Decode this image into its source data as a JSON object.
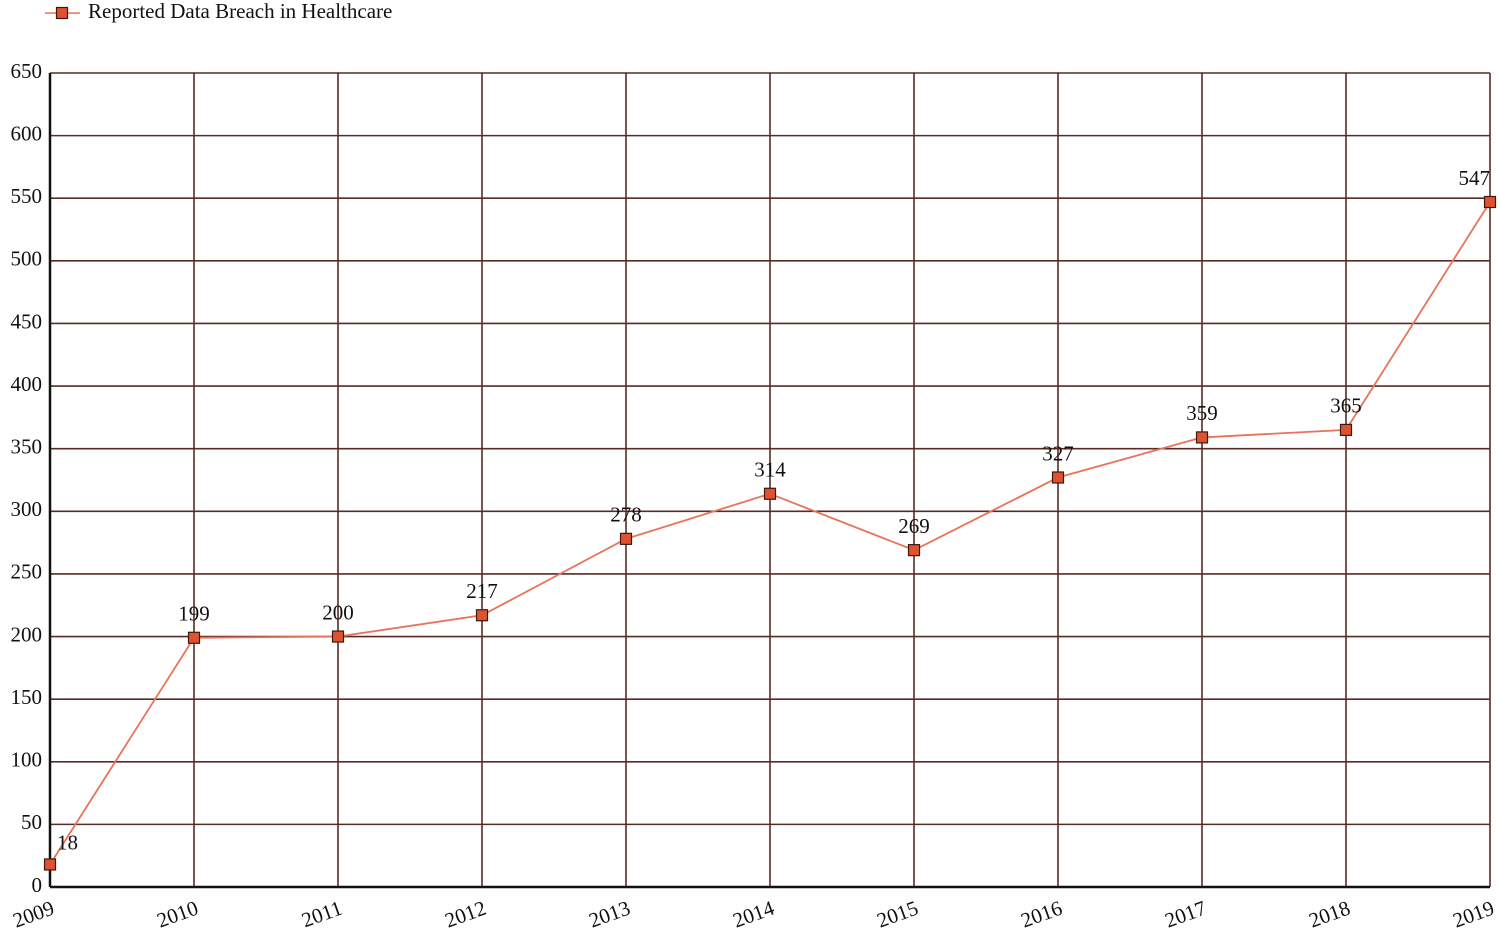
{
  "chart_data": {
    "type": "line",
    "categories": [
      "2009",
      "2010",
      "2011",
      "2012",
      "2013",
      "2014",
      "2015",
      "2016",
      "2017",
      "2018",
      "2019"
    ],
    "series": [
      {
        "name": "Reported Data Breach in Healthcare",
        "color": "#e8735a",
        "marker_color": "#e0522f",
        "values": [
          18,
          199,
          200,
          217,
          278,
          314,
          269,
          327,
          359,
          365,
          547
        ]
      }
    ],
    "ylim": [
      0,
      650
    ],
    "yticks": [
      0,
      50,
      100,
      150,
      200,
      250,
      300,
      350,
      400,
      450,
      500,
      550,
      600,
      650
    ],
    "grid": true,
    "legend": "top-left"
  }
}
